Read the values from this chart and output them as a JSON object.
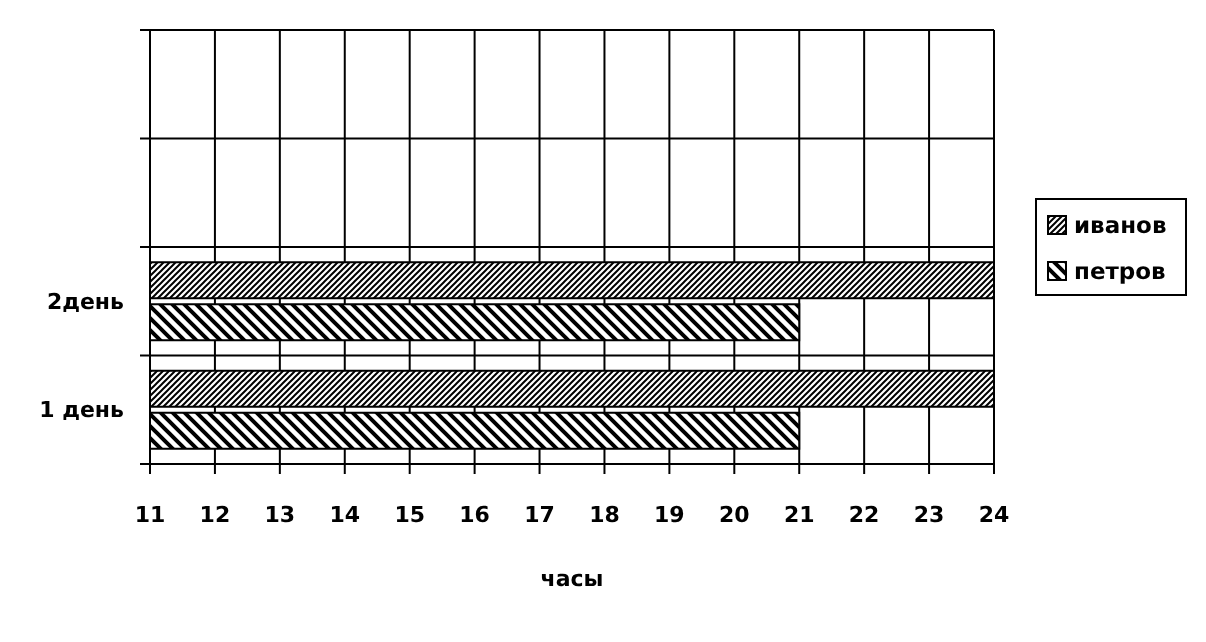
{
  "chart_data": {
    "type": "bar",
    "orientation": "horizontal",
    "xlabel": "часы",
    "categories": [
      null,
      null,
      "2день",
      "1 день"
    ],
    "series": [
      {
        "name": "иванов",
        "color": "#000000",
        "values": [
          null,
          null,
          24,
          24
        ]
      },
      {
        "name": "петров",
        "color": "#000000",
        "values": [
          null,
          null,
          21,
          21
        ]
      }
    ],
    "xlim": [
      11,
      24
    ],
    "xticks": [
      11,
      12,
      13,
      14,
      15,
      16,
      17,
      18,
      19,
      20,
      21,
      22,
      23,
      24
    ],
    "grid": true,
    "legend": "right"
  }
}
